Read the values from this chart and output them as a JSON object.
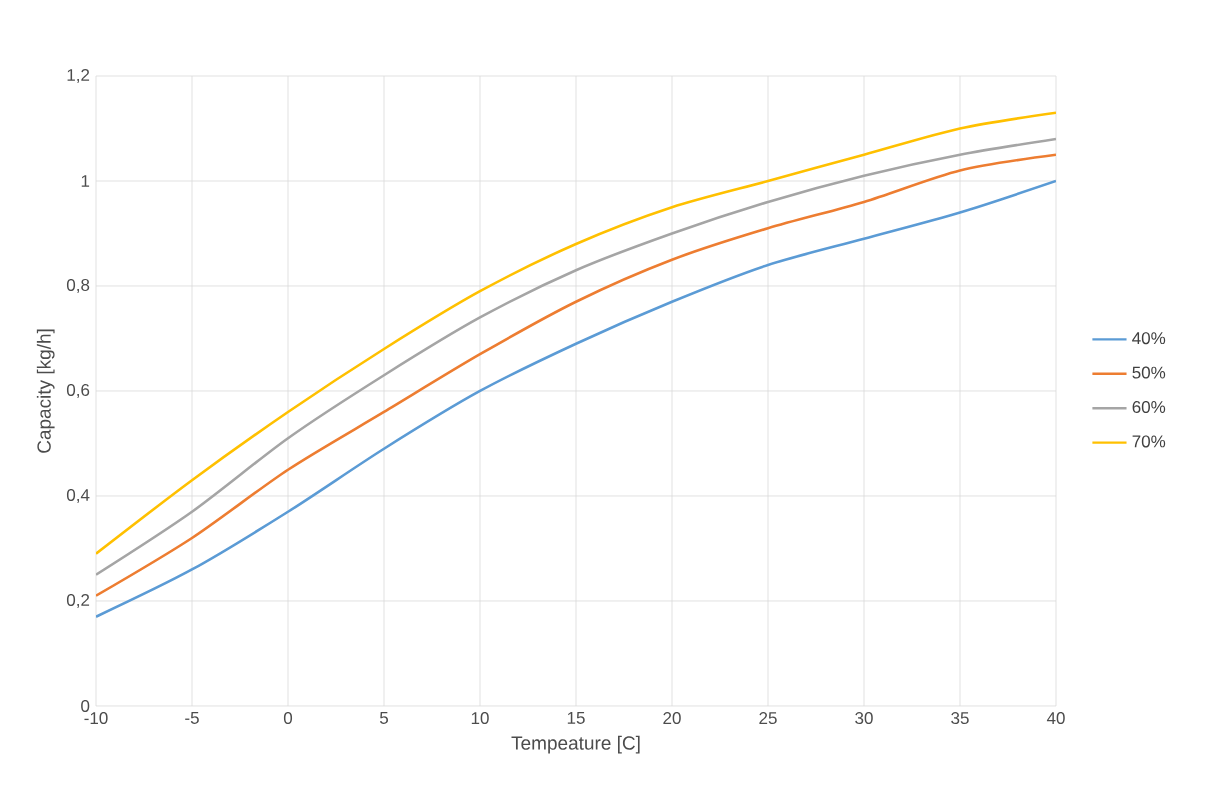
{
  "chart_data": {
    "type": "line",
    "xlabel": "Tempeature [C]",
    "ylabel": "Capacity [kg/h]",
    "x": [
      -10,
      -5,
      0,
      5,
      10,
      15,
      20,
      25,
      30,
      35,
      40
    ],
    "series": [
      {
        "name": "40%",
        "color": "#5b9bd5",
        "values": [
          0.17,
          0.26,
          0.37,
          0.49,
          0.6,
          0.69,
          0.77,
          0.84,
          0.89,
          0.94,
          1.0
        ]
      },
      {
        "name": "50%",
        "color": "#ed7d31",
        "values": [
          0.21,
          0.32,
          0.45,
          0.56,
          0.67,
          0.77,
          0.85,
          0.91,
          0.96,
          1.02,
          1.05
        ]
      },
      {
        "name": "60%",
        "color": "#a5a5a5",
        "values": [
          0.25,
          0.37,
          0.51,
          0.63,
          0.74,
          0.83,
          0.9,
          0.96,
          1.01,
          1.05,
          1.08
        ]
      },
      {
        "name": "70%",
        "color": "#ffc000",
        "values": [
          0.29,
          0.43,
          0.56,
          0.68,
          0.79,
          0.88,
          0.95,
          1.0,
          1.05,
          1.1,
          1.13
        ]
      }
    ],
    "xlim": [
      -10,
      40
    ],
    "xticks": [
      -10,
      -5,
      0,
      5,
      10,
      15,
      20,
      25,
      30,
      35,
      40
    ],
    "ylim": [
      0,
      1.2
    ],
    "yticks": [
      0,
      {
        "value": 0.2,
        "label": "0,2"
      },
      {
        "value": 0.4,
        "label": "0,4"
      },
      {
        "value": 0.6,
        "label": "0,6"
      },
      {
        "value": 0.8,
        "label": "0,8"
      },
      1,
      {
        "value": 1.2,
        "label": "1,2"
      }
    ],
    "grid": true,
    "legend": "right",
    "marker": "none",
    "line_style": "solid"
  }
}
